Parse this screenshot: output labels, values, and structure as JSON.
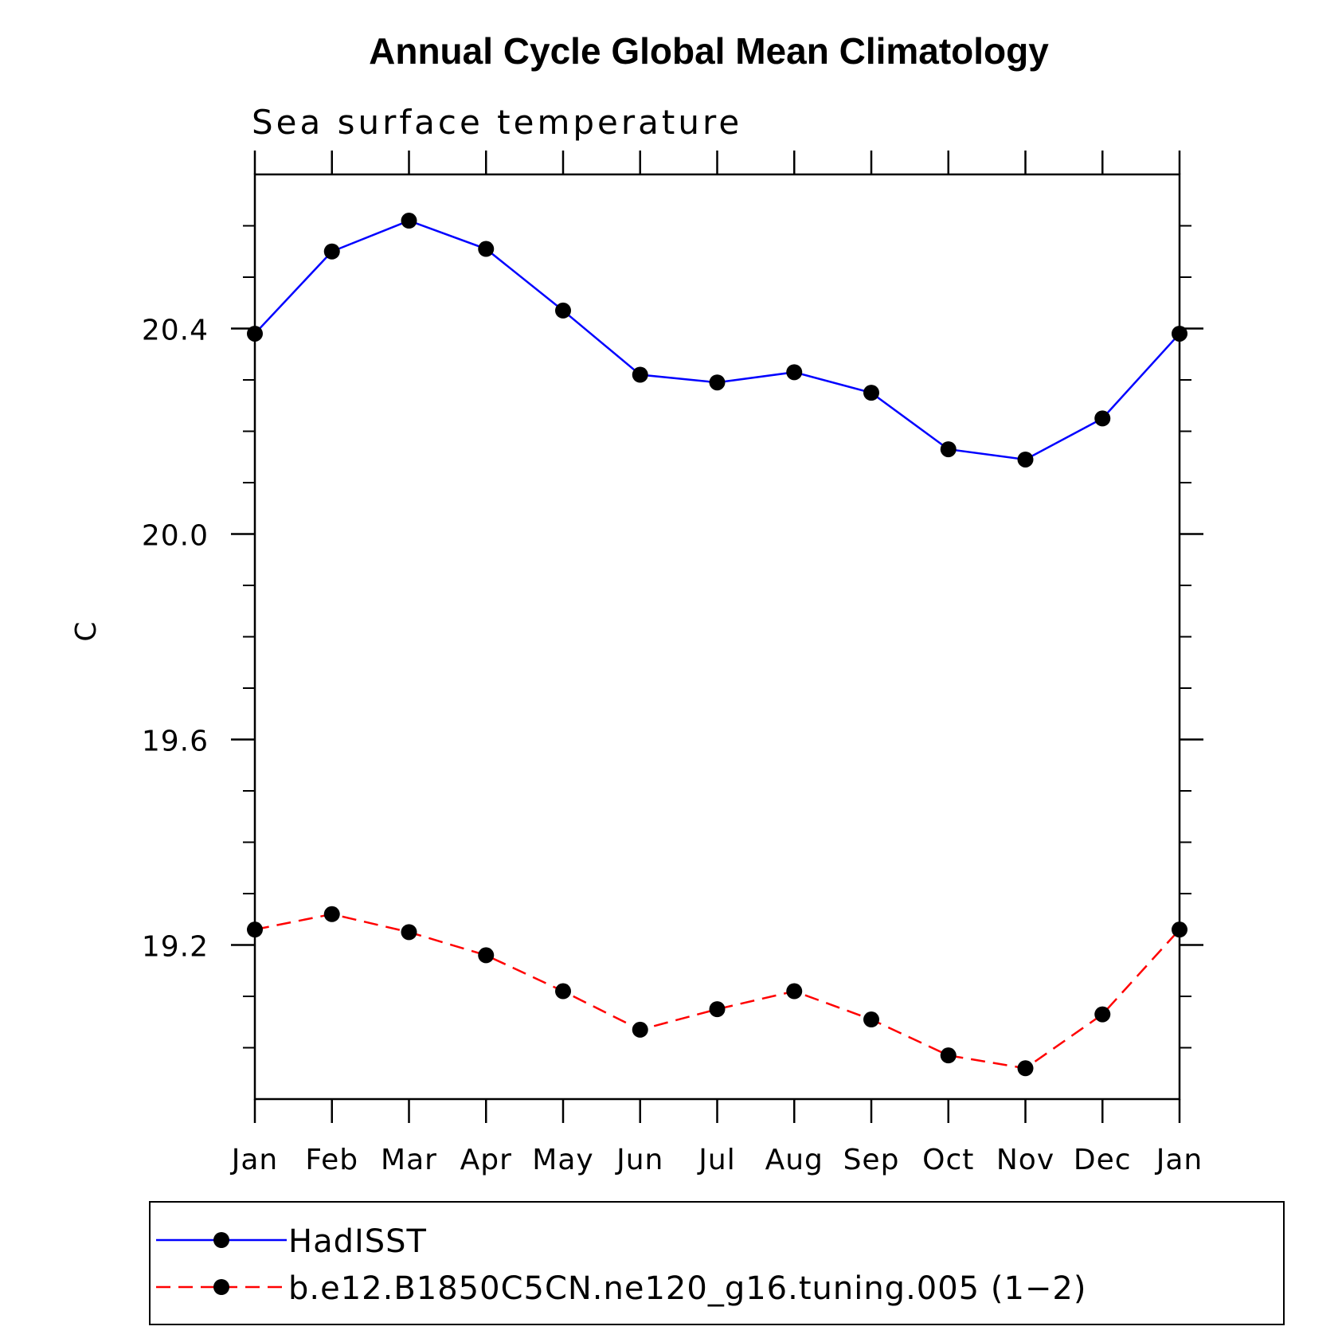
{
  "chart_data": {
    "type": "line",
    "title": "Annual Cycle Global Mean Climatology",
    "subtitle": "Sea surface temperature",
    "ylabel": "C",
    "xlabel": "",
    "categories": [
      "Jan",
      "Feb",
      "Mar",
      "Apr",
      "May",
      "Jun",
      "Jul",
      "Aug",
      "Sep",
      "Oct",
      "Nov",
      "Dec",
      "Jan"
    ],
    "ylim": [
      18.9,
      20.7
    ],
    "yticks_major": [
      19.2,
      19.6,
      20.0,
      20.4
    ],
    "ytick_labels": [
      "19.2",
      "19.6",
      "20.0",
      "20.4"
    ],
    "yticks_minor_step": 0.1,
    "grid": false,
    "legend_position": "bottom",
    "series": [
      {
        "name": "HadISST",
        "color": "#0000ff",
        "line_style": "solid",
        "marker": "filled-circle",
        "values": [
          20.39,
          20.55,
          20.61,
          20.555,
          20.435,
          20.31,
          20.295,
          20.315,
          20.275,
          20.165,
          20.145,
          20.225,
          20.39
        ]
      },
      {
        "name": "b.e12.B1850C5CN.ne120_g16.tuning.005 (1−2)",
        "color": "#ff0000",
        "line_style": "dashed",
        "marker": "filled-circle",
        "values": [
          19.23,
          19.26,
          19.225,
          19.18,
          19.11,
          19.035,
          19.075,
          19.11,
          19.055,
          18.985,
          18.96,
          19.065,
          19.23
        ]
      }
    ]
  }
}
